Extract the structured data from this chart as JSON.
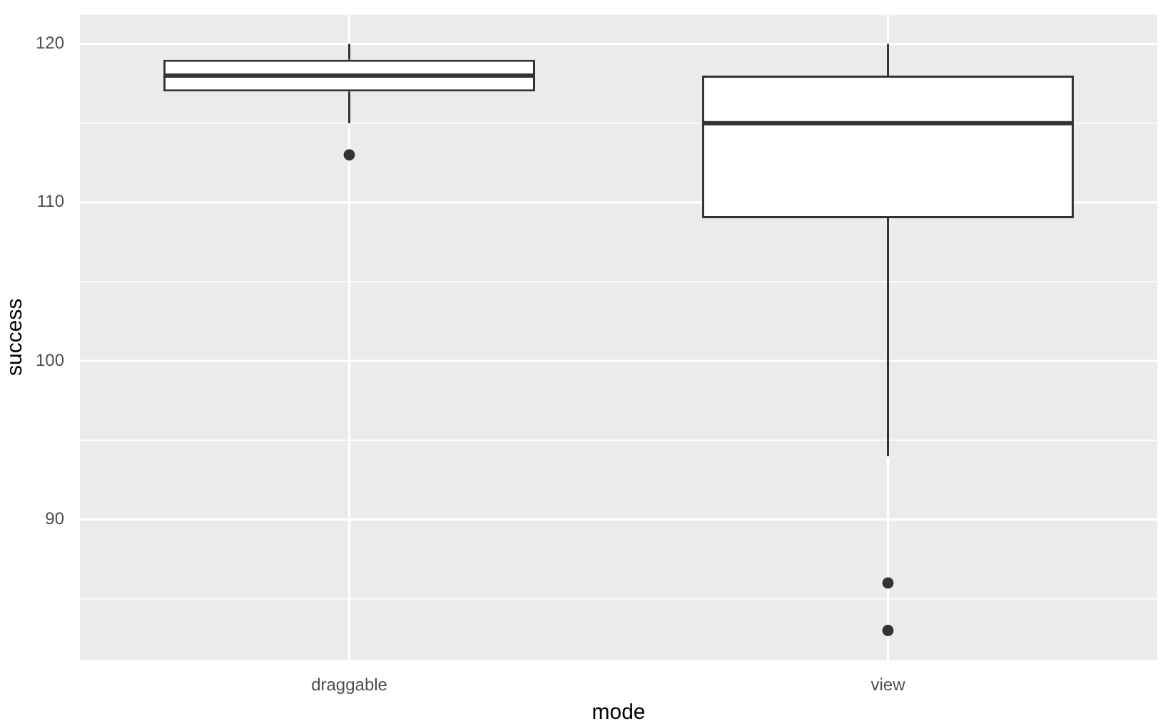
{
  "chart_data": {
    "type": "box",
    "xlabel": "mode",
    "ylabel": "success",
    "categories": [
      "draggable",
      "view"
    ],
    "boxes": [
      {
        "low": 115,
        "q1": 117,
        "median": 118,
        "q3": 119,
        "high": 120,
        "outliers": [
          113
        ]
      },
      {
        "low": 94,
        "q1": 109,
        "median": 115,
        "q3": 118,
        "high": 120,
        "outliers": [
          86,
          83
        ]
      }
    ],
    "ylim": [
      81.15,
      121.85
    ],
    "yticks": [
      {
        "value": 85,
        "label": null
      },
      90,
      {
        "value": 95,
        "label": null
      },
      100,
      {
        "value": 105,
        "label": null
      },
      110,
      {
        "value": 115,
        "label": null
      },
      120
    ],
    "grid": true,
    "legend": false
  }
}
